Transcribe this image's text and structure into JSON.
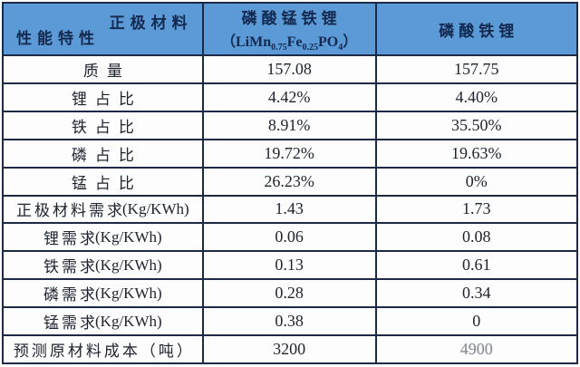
{
  "table": {
    "corner": {
      "top_right": "正极材料",
      "bottom_left": "性能特性"
    },
    "columns": {
      "lmfp": {
        "name": "磷酸锰铁锂",
        "formula": {
          "open": "（",
          "b1": "LiMn",
          "s1": "0.75",
          "b2": "Fe",
          "s2": "0.25",
          "b3": "PO",
          "s3": "4",
          "close": "）"
        }
      },
      "lfp": {
        "name": "磷酸铁锂"
      }
    },
    "rows": [
      {
        "label_cn": "质量",
        "label_en": "",
        "lmfp": "157.08",
        "lfp": "157.75"
      },
      {
        "label_cn": "锂占比",
        "label_en": "",
        "lmfp": "4.42%",
        "lfp": "4.40%"
      },
      {
        "label_cn": "铁占比",
        "label_en": "",
        "lmfp": "8.91%",
        "lfp": "35.50%"
      },
      {
        "label_cn": "磷占比",
        "label_en": "",
        "lmfp": "19.72%",
        "lfp": "19.63%"
      },
      {
        "label_cn": "锰占比",
        "label_en": "",
        "lmfp": "26.23%",
        "lfp": "0%"
      },
      {
        "label_cn": "正极材料需求",
        "label_en": "(Kg/KWh)",
        "lmfp": "1.43",
        "lfp": "1.73"
      },
      {
        "label_cn": "锂需求",
        "label_en": "(Kg/KWh)",
        "lmfp": "0.06",
        "lfp": "0.08"
      },
      {
        "label_cn": "铁需求",
        "label_en": "(Kg/KWh)",
        "lmfp": "0.13",
        "lfp": "0.61"
      },
      {
        "label_cn": "磷需求",
        "label_en": "(Kg/KWh)",
        "lmfp": "0.28",
        "lfp": "0.34"
      },
      {
        "label_cn": "锰需求",
        "label_en": "(Kg/KWh)",
        "lmfp": "0.38",
        "lfp": "0"
      },
      {
        "label_cn": "预测原材料成本（吨）",
        "label_en": "",
        "lmfp": "3200",
        "lfp": "4900"
      }
    ]
  },
  "colors": {
    "header_background": "#5b9ad6",
    "grid_line": "#1c2a45",
    "header_text": "#13294f",
    "body_text": "#20242f",
    "faded_value": "#8e9097"
  },
  "chart_data": {
    "type": "table",
    "title": "",
    "corner_header": {
      "top_right": "正极材料",
      "bottom_left": "性能特性"
    },
    "columns": [
      "性能特性",
      "磷酸锰铁锂（LiMn0.75Fe0.25PO4）",
      "磷酸铁锂"
    ],
    "rows": [
      [
        "质量",
        "157.08",
        "157.75"
      ],
      [
        "锂占比",
        "4.42%",
        "4.40%"
      ],
      [
        "铁占比",
        "8.91%",
        "35.50%"
      ],
      [
        "磷占比",
        "19.72%",
        "19.63%"
      ],
      [
        "锰占比",
        "26.23%",
        "0%"
      ],
      [
        "正极材料需求(Kg/KWh)",
        "1.43",
        "1.73"
      ],
      [
        "锂需求(Kg/KWh)",
        "0.06",
        "0.08"
      ],
      [
        "铁需求(Kg/KWh)",
        "0.13",
        "0.61"
      ],
      [
        "磷需求(Kg/KWh)",
        "0.28",
        "0.34"
      ],
      [
        "锰需求(Kg/KWh)",
        "0.38",
        "0"
      ],
      [
        "预测原材料成本（吨）",
        "3200",
        "4900"
      ]
    ]
  }
}
